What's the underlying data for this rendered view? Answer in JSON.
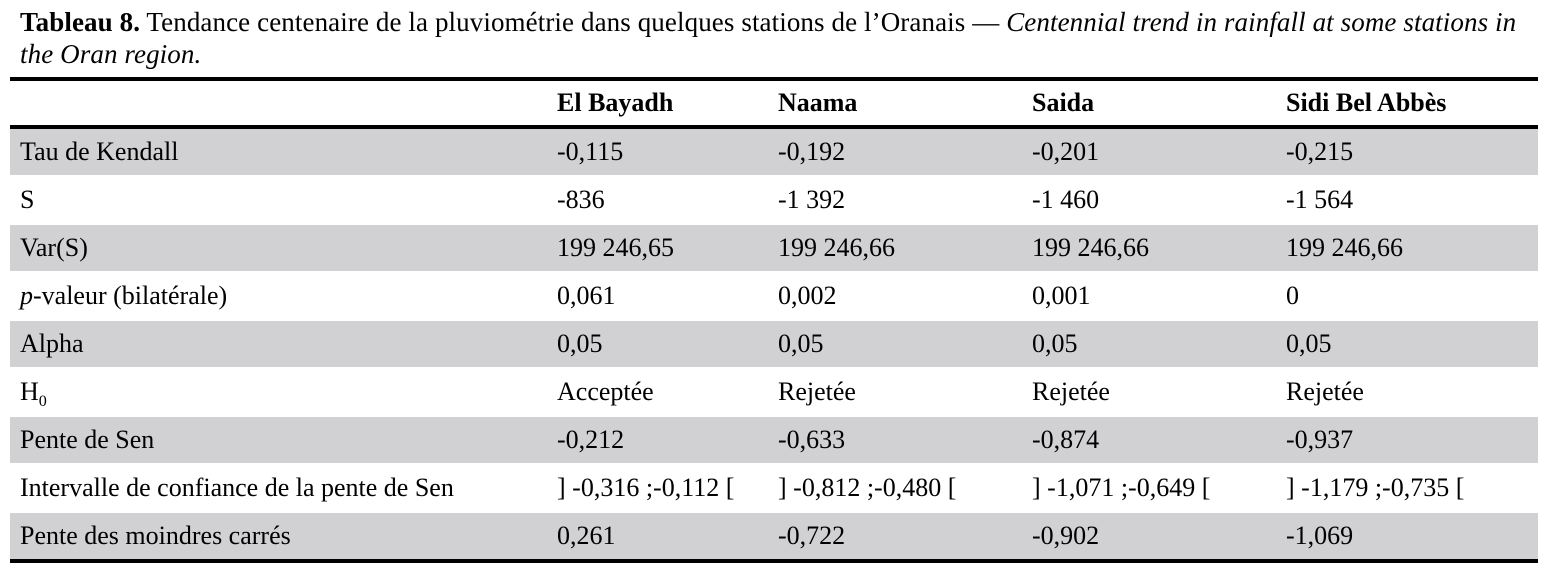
{
  "caption": {
    "label": "Tableau 8.",
    "text_fr": " Tendance centenaire de la pluviométrie dans quelques stations de l’Oranais — ",
    "text_en": "Centennial trend in rainfall at some stations in the Oran region."
  },
  "table": {
    "shading_color": "#d1d1d3",
    "columns": [
      "El Bayadh",
      "Naama",
      "Saida",
      "Sidi Bel Abbès"
    ],
    "rows": [
      {
        "label": "Tau de Kendall",
        "values": [
          "-0,115",
          "-0,192",
          "-0,201",
          "-0,215"
        ]
      },
      {
        "label": "S",
        "values": [
          "-836",
          "-1 392",
          "-1 460",
          "-1 564"
        ]
      },
      {
        "label": "Var(S)",
        "values": [
          "199 246,65",
          "199 246,66",
          "199 246,66",
          "199 246,66"
        ]
      },
      {
        "label_italic": "p",
        "label": "-valeur (bilatérale)",
        "values": [
          "0,061",
          "0,002",
          "0,001",
          "0"
        ]
      },
      {
        "label": "Alpha",
        "values": [
          "0,05",
          "0,05",
          "0,05",
          "0,05"
        ]
      },
      {
        "label": "H",
        "label_sub": "0",
        "values": [
          "Acceptée",
          "Rejetée",
          "Rejetée",
          "Rejetée"
        ]
      },
      {
        "label": "Pente de Sen",
        "values": [
          "-0,212",
          "-0,633",
          "-0,874",
          "-0,937"
        ]
      },
      {
        "label": "Intervalle de confiance de la pente de Sen",
        "values": [
          "] -0,316 ;-0,112 [",
          "] -0,812 ;-0,480 [",
          "] -1,071 ;-0,649 [",
          "] -1,179 ;-0,735 ["
        ]
      },
      {
        "label": "Pente des moindres carrés",
        "values": [
          "0,261",
          "-0,722",
          "-0,902",
          "-1,069"
        ]
      }
    ]
  }
}
